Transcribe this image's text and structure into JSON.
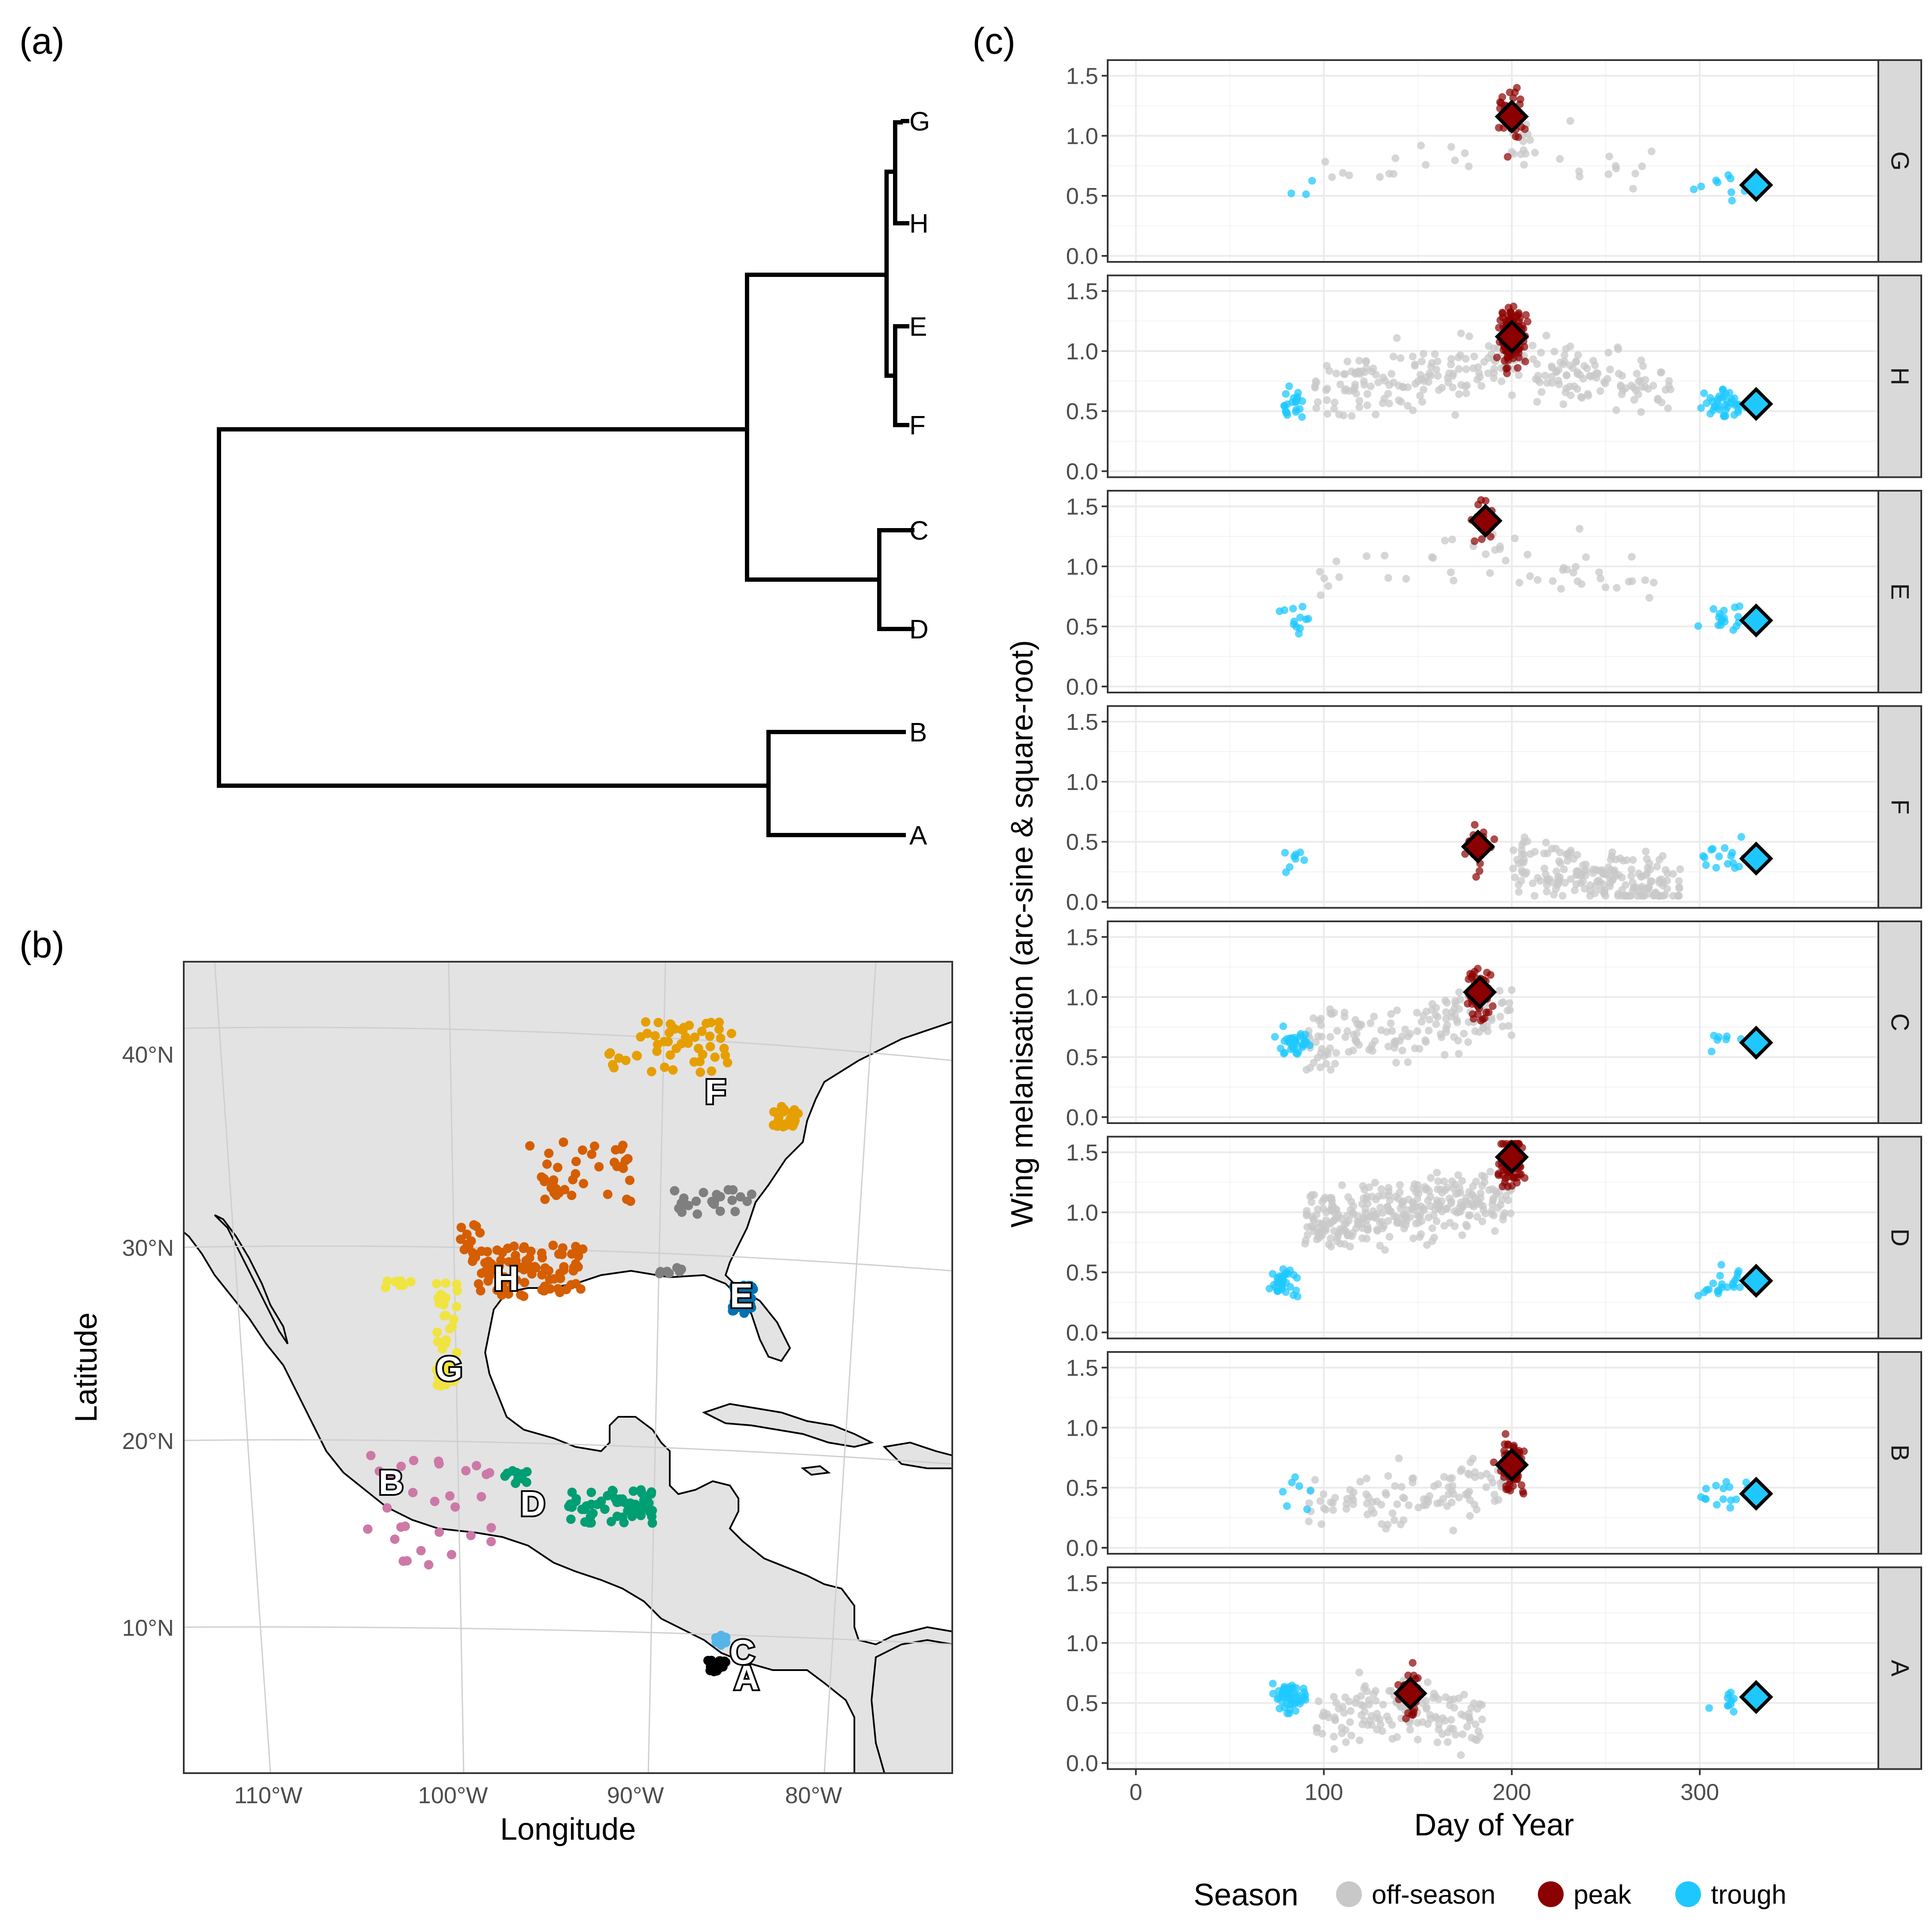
{
  "figure": {
    "panel_labels": [
      "(a)",
      "(b)",
      "(c)"
    ]
  },
  "colors": {
    "off_season": "#c8c8c8",
    "peak": "#8b0000",
    "trough": "#1ec8ff",
    "land": "#e3e3e3",
    "panel_bg": "#ffffff",
    "strip_bg": "#d9d9d9",
    "grid": "#ebebeb",
    "clades": {
      "A": "#000000",
      "B": "#cc79a7",
      "C": "#56b4e9",
      "D": "#009e73",
      "E": "#0072b2",
      "F": "#e69f00",
      "G": "#f0e442",
      "H": "#d55e00",
      "gray": "#7f7f7f"
    }
  },
  "tree": {
    "tips": [
      "G",
      "H",
      "E",
      "F",
      "C",
      "D",
      "B",
      "A"
    ]
  },
  "map": {
    "xlabel": "Longitude",
    "ylabel": "Latitude",
    "lat_ticks": [
      "40°N",
      "30°N",
      "20°N",
      "10°N"
    ],
    "lon_ticks": [
      "110°W",
      "100°W",
      "90°W",
      "80°W"
    ],
    "region_labels": [
      "F",
      "H",
      "E",
      "G",
      "B",
      "D",
      "C",
      "A"
    ]
  },
  "chart_data": {
    "type": "scatter",
    "xlabel": "Day of Year",
    "ylabel": "Wing melanisation (arc-sine & square-root)",
    "xlim": [
      -15,
      395
    ],
    "ylim": [
      -0.05,
      1.63
    ],
    "x_ticks": [
      0,
      100,
      200,
      300
    ],
    "y_ticks": [
      0.0,
      0.5,
      1.0,
      1.5
    ],
    "x_tick_labels": [
      "0",
      "100",
      "200",
      "300"
    ],
    "y_tick_labels": [
      "0.0",
      "0.5",
      "1.0",
      "1.5"
    ],
    "grid": true,
    "legend": {
      "title": "Season",
      "position": "bottom",
      "entries": [
        "off-season",
        "peak",
        "trough"
      ]
    },
    "facets": [
      {
        "name": "G",
        "peak_mean": {
          "x": 200,
          "y": 1.16
        },
        "trough_mean": {
          "x": 330,
          "y": 0.59
        }
      },
      {
        "name": "H",
        "peak_mean": {
          "x": 200,
          "y": 1.12
        },
        "trough_mean": {
          "x": 330,
          "y": 0.56
        }
      },
      {
        "name": "E",
        "peak_mean": {
          "x": 186,
          "y": 1.38
        },
        "trough_mean": {
          "x": 330,
          "y": 0.55
        }
      },
      {
        "name": "F",
        "peak_mean": {
          "x": 182,
          "y": 0.46
        },
        "trough_mean": {
          "x": 330,
          "y": 0.36
        }
      },
      {
        "name": "C",
        "peak_mean": {
          "x": 183,
          "y": 1.04
        },
        "trough_mean": {
          "x": 330,
          "y": 0.62
        }
      },
      {
        "name": "D",
        "peak_mean": {
          "x": 200,
          "y": 1.46
        },
        "trough_mean": {
          "x": 330,
          "y": 0.43
        }
      },
      {
        "name": "B",
        "peak_mean": {
          "x": 200,
          "y": 0.69
        },
        "trough_mean": {
          "x": 330,
          "y": 0.45
        }
      },
      {
        "name": "A",
        "peak_mean": {
          "x": 146,
          "y": 0.58
        },
        "trough_mean": {
          "x": 330,
          "y": 0.55
        }
      }
    ]
  }
}
